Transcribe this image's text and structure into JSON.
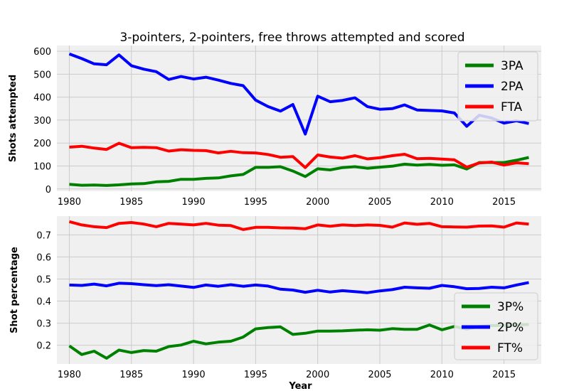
{
  "chart_data": [
    {
      "type": "line",
      "title": "3-pointers, 2-pointers, free throws attempted and scored",
      "xlabel": "",
      "ylabel": "Shots attempted",
      "xlim": [
        1979,
        2018
      ],
      "ylim": [
        -10,
        625
      ],
      "xticks": [
        1980,
        1985,
        1990,
        1995,
        2000,
        2005,
        2010,
        2015
      ],
      "yticks": [
        0,
        100,
        200,
        300,
        400,
        500,
        600
      ],
      "grid": true,
      "legend_position": "top-right",
      "x": [
        1980,
        1981,
        1982,
        1983,
        1984,
        1985,
        1986,
        1987,
        1988,
        1989,
        1990,
        1991,
        1992,
        1993,
        1994,
        1995,
        1996,
        1997,
        1998,
        1999,
        2000,
        2001,
        2002,
        2003,
        2004,
        2005,
        2006,
        2007,
        2008,
        2009,
        2010,
        2011,
        2012,
        2013,
        2014,
        2015,
        2016,
        2017
      ],
      "series": [
        {
          "name": "3PA",
          "color": "#008000",
          "values": [
            20,
            16,
            17,
            15,
            18,
            22,
            23,
            31,
            33,
            42,
            42,
            46,
            48,
            57,
            63,
            94,
            94,
            97,
            78,
            54,
            88,
            83,
            93,
            97,
            90,
            95,
            99,
            108,
            104,
            107,
            103,
            105,
            87,
            115,
            115,
            115,
            125,
            137
          ]
        },
        {
          "name": "2PA",
          "color": "#0000ff",
          "values": [
            588,
            568,
            545,
            541,
            584,
            537,
            522,
            511,
            477,
            490,
            479,
            487,
            474,
            460,
            450,
            387,
            359,
            339,
            368,
            239,
            404,
            380,
            386,
            397,
            359,
            347,
            350,
            366,
            344,
            342,
            340,
            331,
            273,
            321,
            309,
            287,
            297,
            285
          ]
        },
        {
          "name": "FTA",
          "color": "#ff0000",
          "values": [
            182,
            186,
            178,
            172,
            199,
            180,
            181,
            180,
            165,
            171,
            168,
            167,
            157,
            164,
            158,
            157,
            150,
            138,
            141,
            93,
            148,
            139,
            134,
            145,
            131,
            136,
            145,
            151,
            132,
            133,
            130,
            127,
            95,
            113,
            117,
            104,
            114,
            110
          ]
        }
      ]
    },
    {
      "type": "line",
      "title": "",
      "xlabel": "Year",
      "ylabel": "Shot percentage",
      "xlim": [
        1979,
        2018
      ],
      "ylim": [
        0.115,
        0.785
      ],
      "xticks": [
        1980,
        1985,
        1990,
        1995,
        2000,
        2005,
        2010,
        2015
      ],
      "yticks": [
        0.2,
        0.3,
        0.4,
        0.5,
        0.6,
        0.7
      ],
      "grid": true,
      "legend_position": "bottom-right",
      "x": [
        1980,
        1981,
        1982,
        1983,
        1984,
        1985,
        1986,
        1987,
        1988,
        1989,
        1990,
        1991,
        1992,
        1993,
        1994,
        1995,
        1996,
        1997,
        1998,
        1999,
        2000,
        2001,
        2002,
        2003,
        2004,
        2005,
        2006,
        2007,
        2008,
        2009,
        2010,
        2011,
        2012,
        2013,
        2014,
        2015,
        2016,
        2017
      ],
      "series": [
        {
          "name": "3P%",
          "color": "#008000",
          "values": [
            0.197,
            0.158,
            0.173,
            0.141,
            0.178,
            0.167,
            0.176,
            0.173,
            0.194,
            0.201,
            0.218,
            0.206,
            0.214,
            0.218,
            0.237,
            0.274,
            0.28,
            0.283,
            0.249,
            0.254,
            0.264,
            0.264,
            0.265,
            0.268,
            0.27,
            0.268,
            0.275,
            0.272,
            0.272,
            0.292,
            0.27,
            0.285,
            0.273,
            0.285,
            0.289,
            0.29,
            0.292,
            0.294
          ]
        },
        {
          "name": "2P%",
          "color": "#0000ff",
          "values": [
            0.473,
            0.471,
            0.477,
            0.469,
            0.481,
            0.479,
            0.474,
            0.47,
            0.474,
            0.468,
            0.462,
            0.473,
            0.467,
            0.474,
            0.467,
            0.473,
            0.468,
            0.454,
            0.45,
            0.44,
            0.449,
            0.441,
            0.447,
            0.443,
            0.438,
            0.446,
            0.452,
            0.463,
            0.46,
            0.458,
            0.471,
            0.465,
            0.456,
            0.457,
            0.463,
            0.46,
            0.473,
            0.484
          ]
        },
        {
          "name": "FT%",
          "color": "#ff0000",
          "values": [
            0.76,
            0.745,
            0.737,
            0.733,
            0.752,
            0.756,
            0.749,
            0.737,
            0.752,
            0.749,
            0.745,
            0.752,
            0.744,
            0.742,
            0.724,
            0.734,
            0.734,
            0.732,
            0.731,
            0.728,
            0.745,
            0.739,
            0.745,
            0.742,
            0.745,
            0.743,
            0.735,
            0.754,
            0.748,
            0.752,
            0.737,
            0.736,
            0.735,
            0.74,
            0.741,
            0.735,
            0.754,
            0.749
          ]
        }
      ]
    }
  ]
}
